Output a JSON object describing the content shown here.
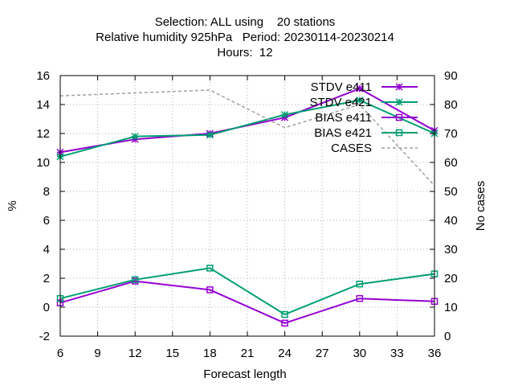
{
  "chart_data": {
    "type": "line",
    "title_lines": [
      "Selection: ALL using    20 stations",
      "Relative humidity 925hPa   Period: 20230114-20230214",
      "Hours:  12"
    ],
    "xlabel": "Forecast length",
    "ylabel": "%",
    "y2label": "No cases",
    "xlim": [
      6,
      36
    ],
    "ylim": [
      -2,
      16
    ],
    "y2lim": [
      0,
      90
    ],
    "xticks": [
      6,
      9,
      12,
      15,
      18,
      21,
      24,
      27,
      30,
      33,
      36
    ],
    "yticks": [
      -2,
      0,
      2,
      4,
      6,
      8,
      10,
      12,
      14,
      16
    ],
    "y2ticks": [
      0,
      10,
      20,
      30,
      40,
      50,
      60,
      70,
      80,
      90
    ],
    "grid": true,
    "legend_position": "top-right",
    "series": [
      {
        "name": "STDV e411",
        "color": "#9400d3",
        "marker": "star",
        "axis": "y",
        "x": [
          6,
          12,
          18,
          24,
          30,
          36
        ],
        "values": [
          10.7,
          11.6,
          12.0,
          13.1,
          15.1,
          12.2
        ]
      },
      {
        "name": "STDV e421",
        "color": "#009e73",
        "marker": "star",
        "axis": "y",
        "x": [
          6,
          12,
          18,
          24,
          30,
          36
        ],
        "values": [
          10.4,
          11.8,
          11.9,
          13.3,
          14.3,
          12.0
        ]
      },
      {
        "name": "BIAS e411",
        "color": "#9400d3",
        "marker": "square",
        "axis": "y",
        "x": [
          6,
          12,
          18,
          24,
          30,
          36
        ],
        "values": [
          0.3,
          1.8,
          1.2,
          -1.1,
          0.6,
          0.4
        ]
      },
      {
        "name": "BIAS e421",
        "color": "#009e73",
        "marker": "square",
        "axis": "y",
        "x": [
          6,
          12,
          18,
          24,
          30,
          36
        ],
        "values": [
          0.6,
          1.9,
          2.7,
          -0.5,
          1.6,
          2.3
        ]
      },
      {
        "name": "CASES",
        "color": "#a0a0a0",
        "marker": "none",
        "dashed": true,
        "axis": "y2",
        "x": [
          6,
          12,
          18,
          24,
          30,
          36
        ],
        "values": [
          83,
          84,
          85,
          72,
          80,
          52
        ]
      }
    ]
  }
}
